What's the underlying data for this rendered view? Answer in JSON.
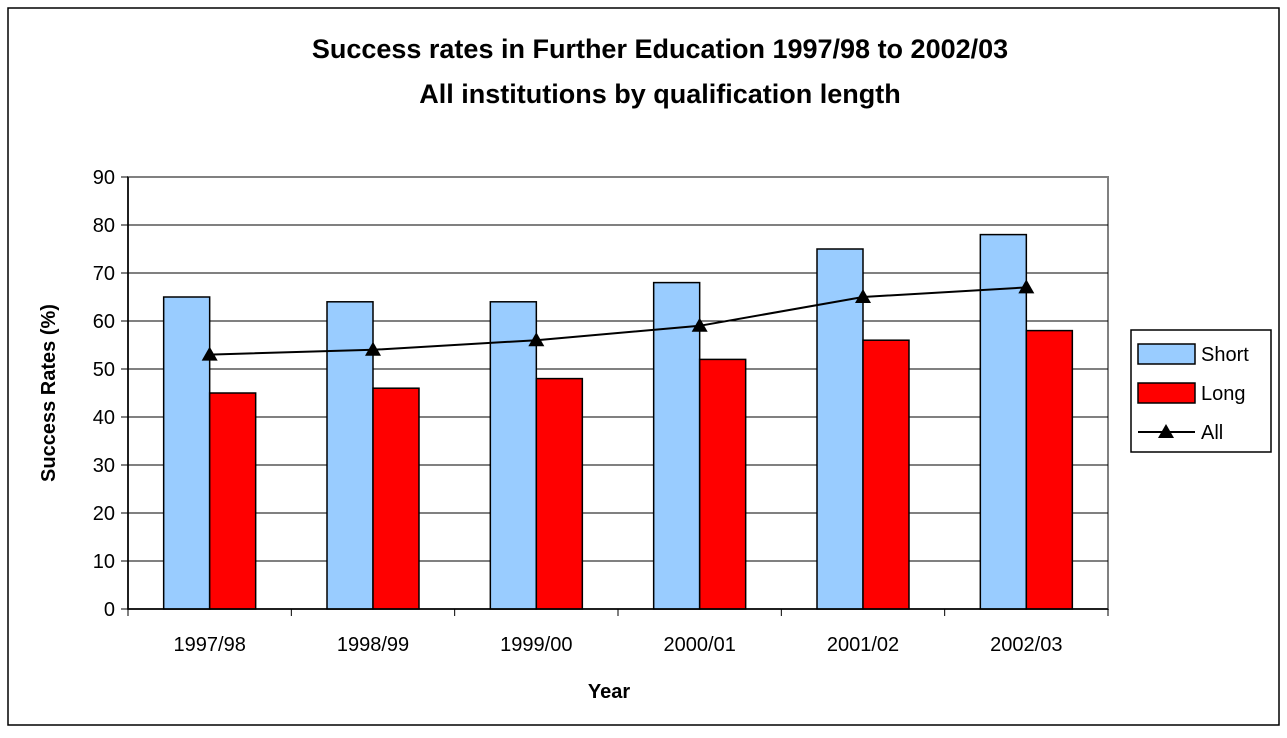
{
  "chart_data": {
    "type": "bar",
    "title_line1": "Success rates in Further Education 1997/98 to 2002/03",
    "title_line2": "All institutions by qualification length",
    "xlabel": "Year",
    "ylabel": "Success Rates (%)",
    "ylim": [
      0,
      90
    ],
    "yticks": [
      "0",
      "10",
      "20",
      "30",
      "40",
      "50",
      "60",
      "70",
      "80",
      "90"
    ],
    "grid": true,
    "legend_position": "right",
    "categories": [
      "1997/98",
      "1998/99",
      "1999/00",
      "2000/01",
      "2001/02",
      "2002/03"
    ],
    "series": [
      {
        "name": "Short",
        "type": "bar",
        "color": "#99ccff",
        "values": [
          65,
          64,
          64,
          68,
          75,
          78
        ]
      },
      {
        "name": "Long",
        "type": "bar",
        "color": "#ff0000",
        "values": [
          45,
          46,
          48,
          52,
          56,
          58
        ]
      },
      {
        "name": "All",
        "type": "line",
        "color": "#000000",
        "marker": "triangle",
        "values": [
          53,
          54,
          56,
          59,
          65,
          67
        ]
      }
    ]
  }
}
